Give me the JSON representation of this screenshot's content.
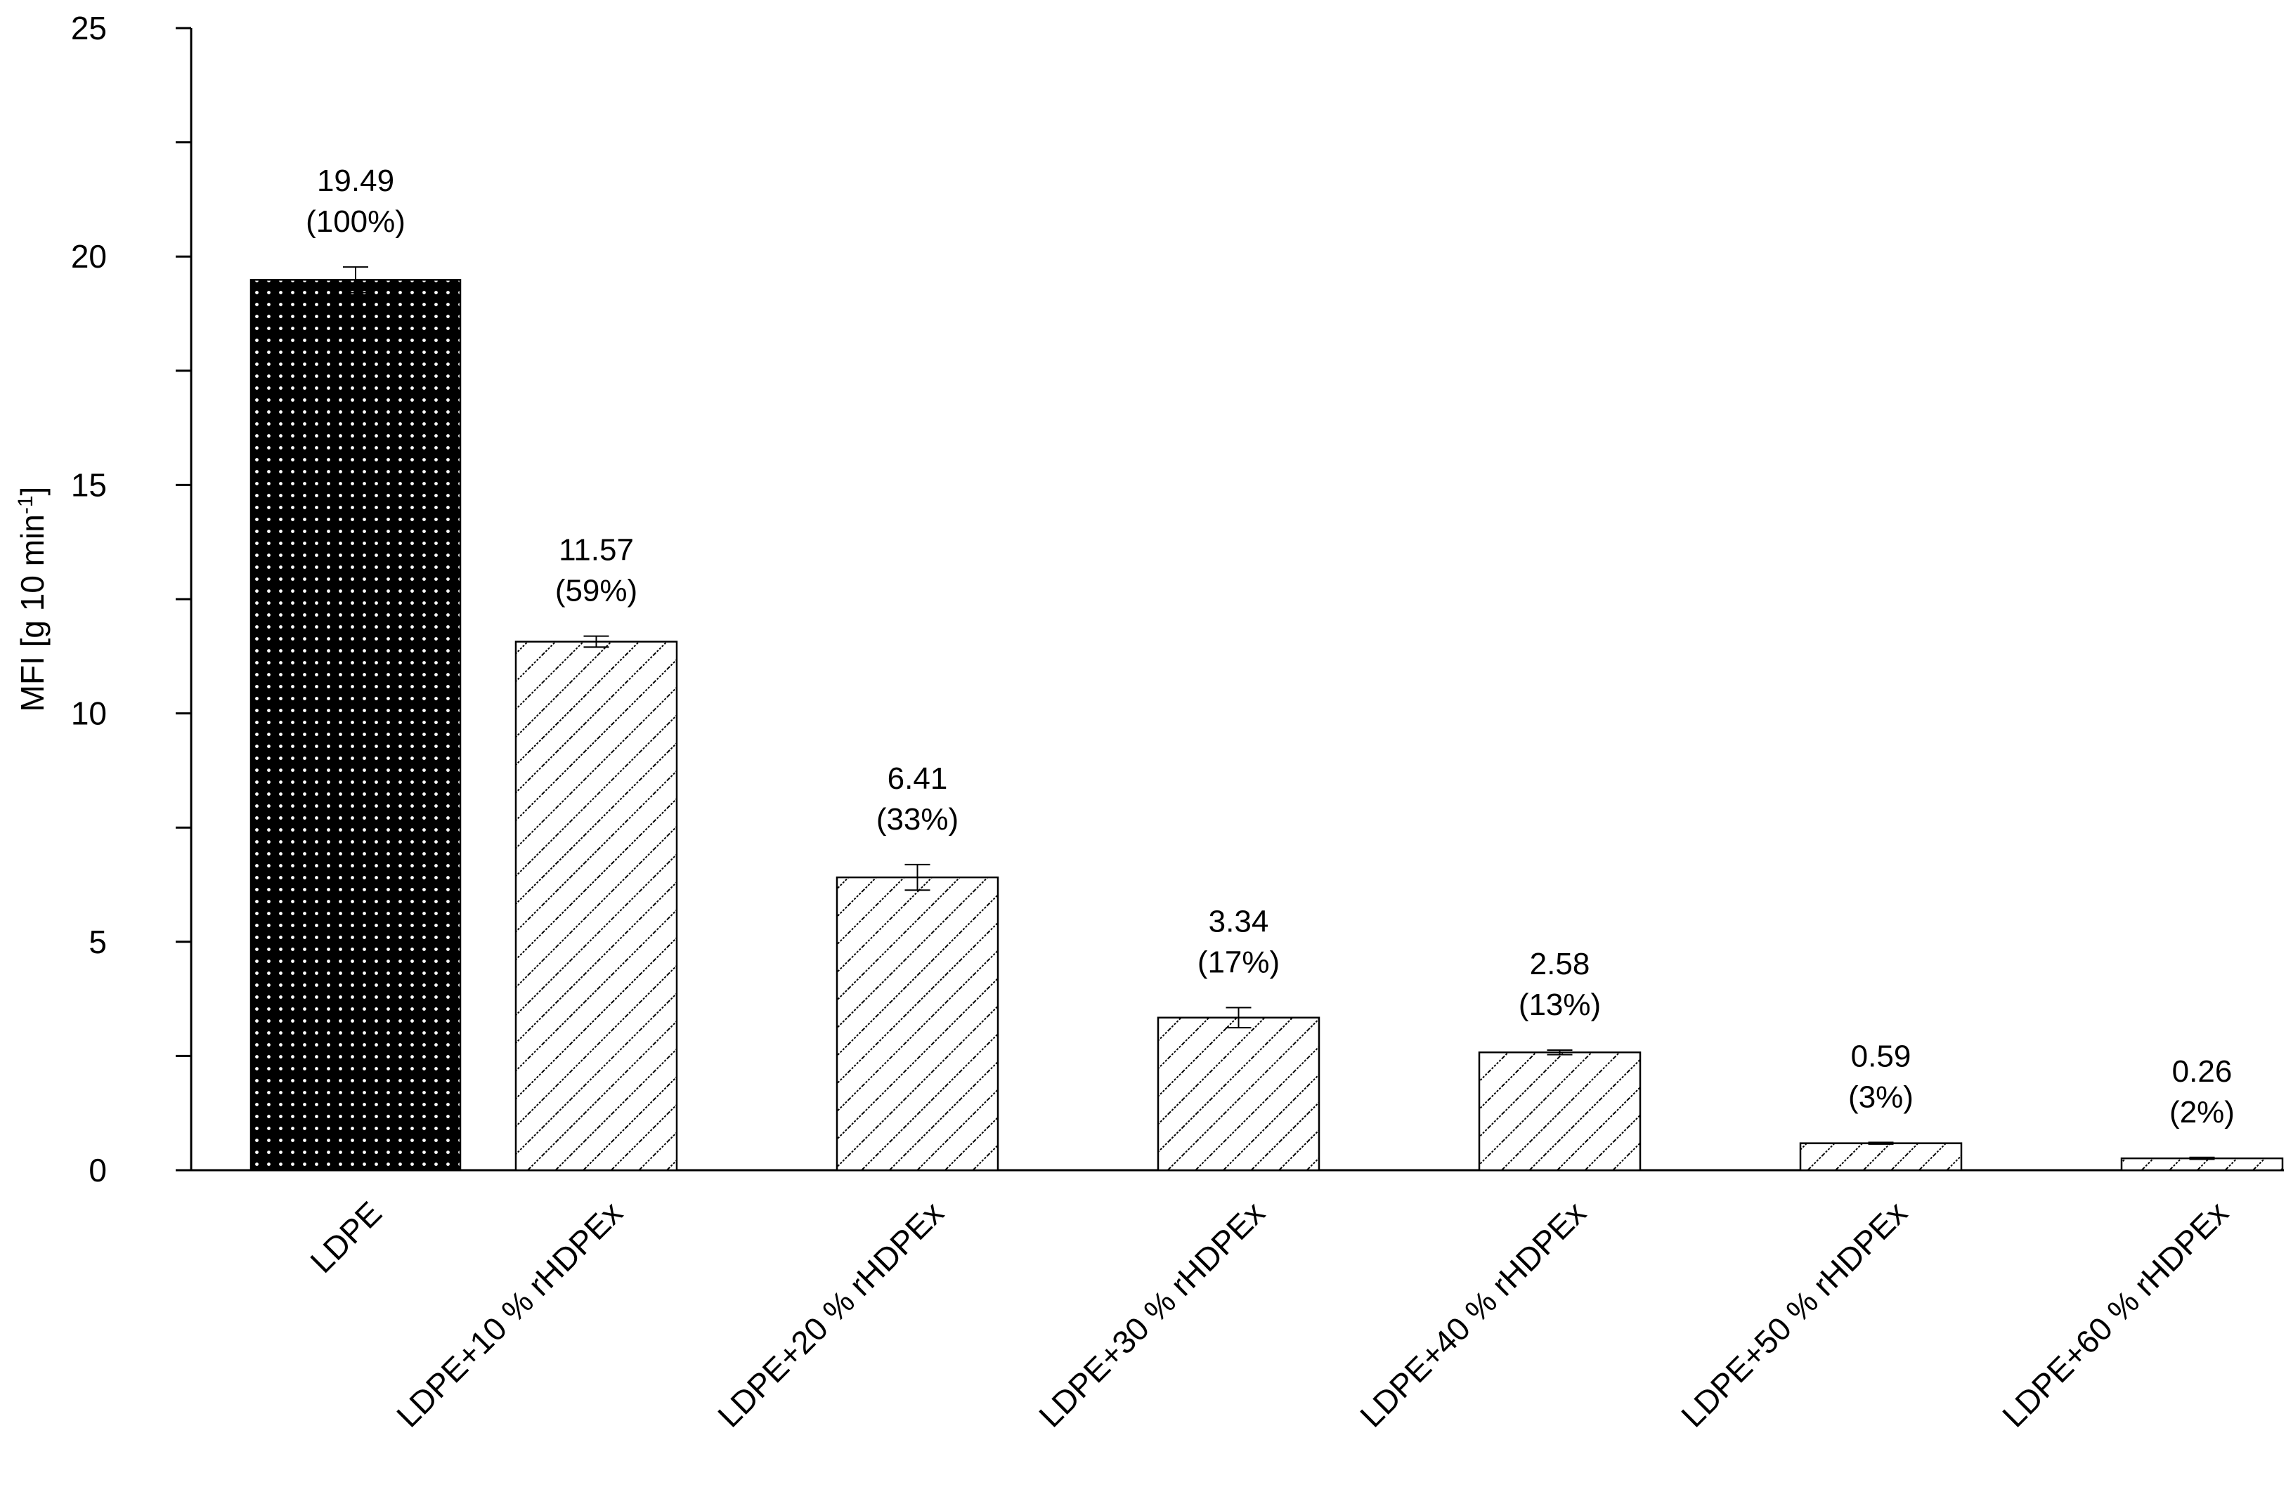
{
  "chart_data": {
    "type": "bar",
    "title": "",
    "xlabel": "",
    "ylabel": "MFI [g 10 min",
    "ylabel_sup": "-1",
    "ylabel_end": "]",
    "ylim": [
      0,
      25
    ],
    "yticks": [
      0,
      5,
      10,
      15,
      20,
      25
    ],
    "grid": false,
    "legend": "none",
    "categories": [
      "LDPE",
      "LDPE+10 % rHDPEx",
      "LDPE+20 % rHDPEx",
      "LDPE+30 % rHDPEx",
      "LDPE+40 % rHDPEx",
      "LDPE+50 % rHDPEx",
      "LDPE+60 % rHDPEx"
    ],
    "values": [
      19.49,
      11.57,
      6.41,
      3.34,
      2.58,
      0.59,
      0.26
    ],
    "errors": [
      0.28,
      0.12,
      0.28,
      0.22,
      0.05,
      0.02,
      0.02
    ],
    "value_labels": [
      "19.49",
      "11.57",
      "6.41",
      "3.34",
      "2.58",
      "0.59",
      "0.26"
    ],
    "percent_labels": [
      "(100%)",
      "(59%)",
      "(33%)",
      "(17%)",
      "(13%)",
      "(3%)",
      "(2%)"
    ],
    "fill_styles": [
      "dotted-black",
      "hatched",
      "hatched",
      "hatched",
      "hatched",
      "hatched",
      "hatched"
    ],
    "colors": {
      "axis": "#000000",
      "bar_black": "#000000",
      "dot": "#ffffff",
      "hatch": "#000000",
      "bar_bg": "#ffffff"
    }
  }
}
